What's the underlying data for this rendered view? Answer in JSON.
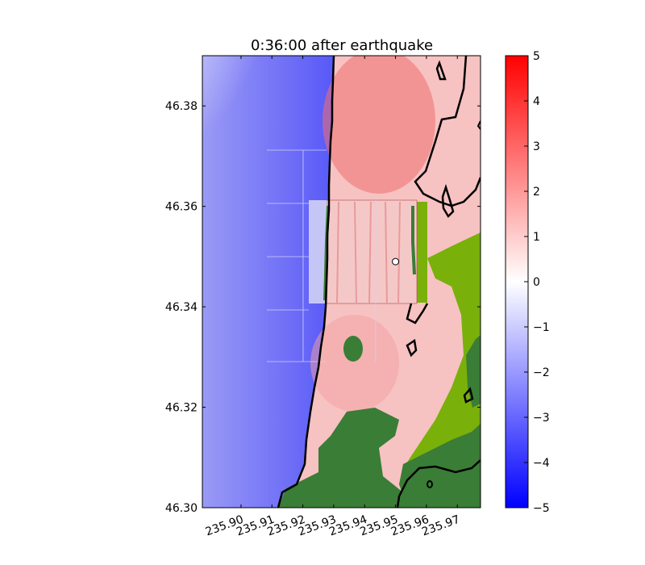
{
  "chart_data": {
    "type": "heatmap",
    "title": "0:36:00 after earthquake",
    "xlabel": "",
    "ylabel": "",
    "xlim": [
      235.8875,
      235.9775
    ],
    "ylim": [
      46.3,
      46.39
    ],
    "x_ticks": [
      235.9,
      235.91,
      235.92,
      235.93,
      235.94,
      235.95,
      235.96,
      235.97
    ],
    "x_tick_labels": [
      "235.90",
      "235.91",
      "235.92",
      "235.93",
      "235.94",
      "235.95",
      "235.96",
      "235.97"
    ],
    "y_ticks": [
      46.3,
      46.32,
      46.34,
      46.36,
      46.38
    ],
    "y_tick_labels": [
      "46.30",
      "46.32",
      "46.34",
      "46.36",
      "46.38"
    ],
    "colorbar": {
      "range": [
        -5,
        5
      ],
      "ticks": [
        5,
        4,
        3,
        2,
        1,
        0,
        -1,
        -2,
        -3,
        -4,
        -5
      ],
      "tick_labels": [
        "5",
        "4",
        "3",
        "2",
        "1",
        "0",
        "−1",
        "−2",
        "−3",
        "−4",
        "−5"
      ],
      "colormap": "bwr",
      "low_color": "#0000ff",
      "mid_color": "#ffffff",
      "high_color": "#ff0000"
    },
    "land_colors": {
      "dry_land": "#3a7d36",
      "low_land": "#7ab00a"
    },
    "offshore_field_values_approx": {
      "nearshore_min": -4.5,
      "far_offshore": -2.8,
      "onshore_inundation": 1.5
    },
    "marked_point": [
      235.95,
      46.349
    ],
    "grid": false
  }
}
